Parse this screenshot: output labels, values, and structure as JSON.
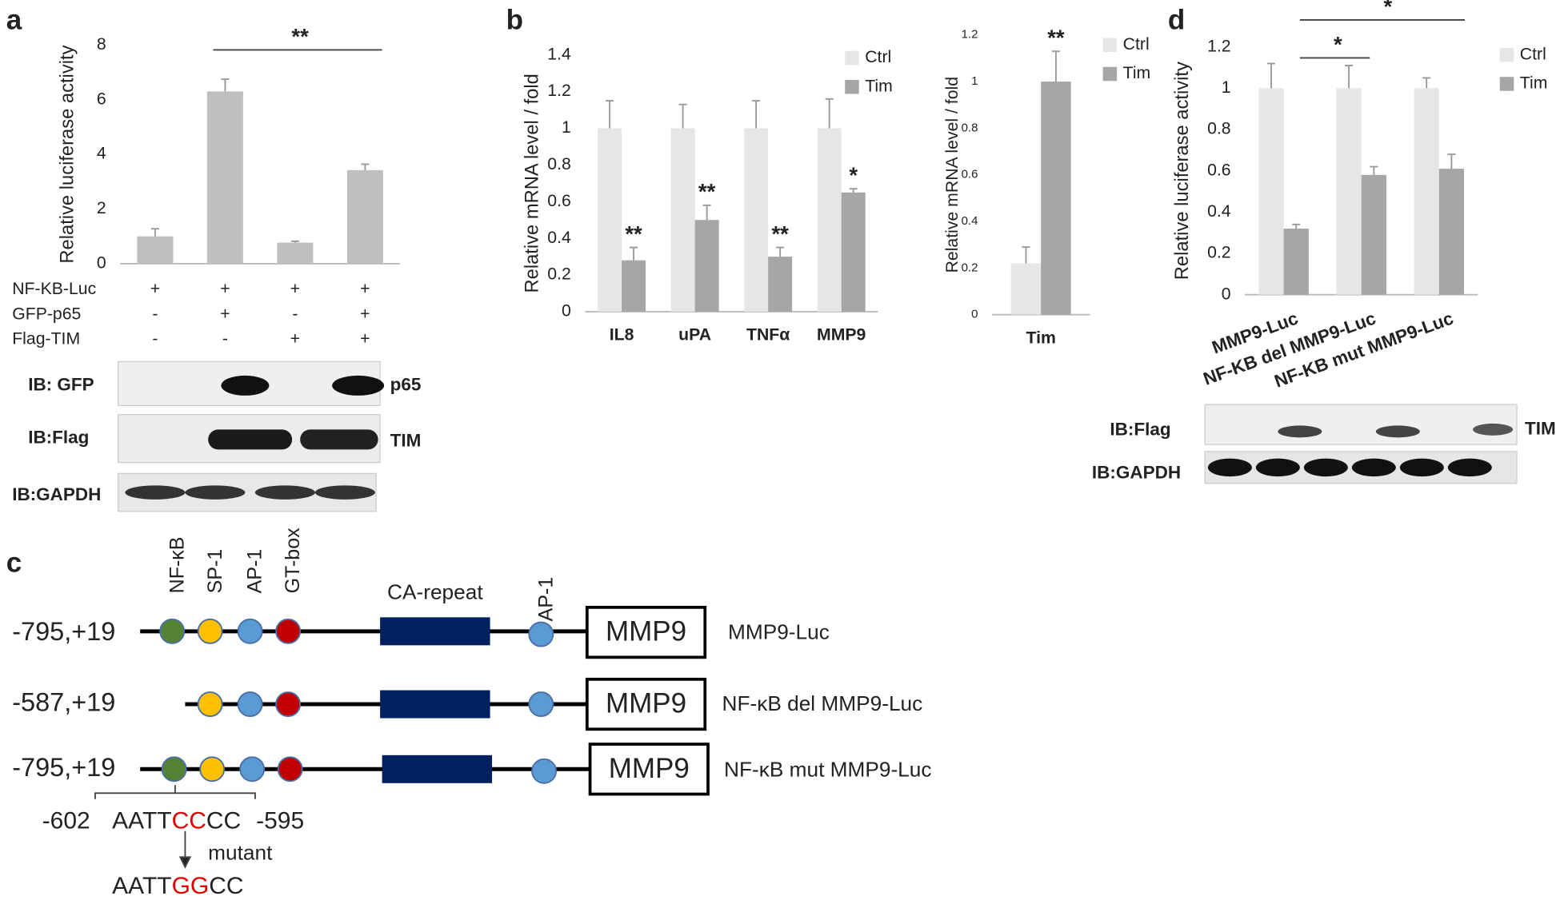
{
  "chart_data": [
    {
      "type": "bar",
      "ylabel": "Relative luciferase activity",
      "categories": [
        null,
        null,
        null,
        null
      ],
      "values": [
        1,
        6.3,
        0.77,
        3.42
      ],
      "errors": [
        0.28,
        0.45,
        0.05,
        0.22
      ],
      "color": "#bfbfbf",
      "ylim": [
        0,
        8
      ],
      "yticks": [
        0,
        2,
        4,
        6,
        8
      ],
      "annotations": [
        "**"
      ],
      "conditions": [
        {
          "name": "NF-KB-Luc",
          "marks": [
            "+",
            "+",
            "+",
            "+"
          ]
        },
        {
          "name": "GFP-p65",
          "marks": [
            "-",
            "+",
            "-",
            "+"
          ]
        },
        {
          "name": "Flag-TIM",
          "marks": [
            "-",
            "-",
            "+",
            "+"
          ]
        }
      ]
    },
    {
      "type": "bar",
      "ylabel": "Relative mRNA level / fold",
      "categories": [
        "IL8",
        "uPA",
        "TNFα",
        "MMP9"
      ],
      "series": [
        {
          "name": "Ctrl",
          "color": "#e6e6e6",
          "values": [
            1,
            1,
            1,
            1
          ],
          "errors": [
            0.15,
            0.13,
            0.15,
            0.16
          ]
        },
        {
          "name": "Tim",
          "color": "#a6a6a6",
          "values": [
            0.28,
            0.5,
            0.3,
            0.65
          ],
          "errors": [
            0.07,
            0.08,
            0.05,
            0.02
          ],
          "sig": [
            "**",
            "**",
            "**",
            "*"
          ]
        }
      ],
      "ylim": [
        0,
        1.4
      ],
      "yticks": [
        0,
        0.2,
        0.4,
        0.6,
        0.8,
        1,
        1.2,
        1.4
      ],
      "legend": "upper right"
    },
    {
      "type": "bar",
      "ylabel": "Relative mRNA level / fold",
      "categories": [
        "Tim"
      ],
      "series": [
        {
          "name": "Ctrl",
          "color": "#e6e6e6",
          "values": [
            0.22
          ],
          "errors": [
            0.07
          ]
        },
        {
          "name": "Tim",
          "color": "#a6a6a6",
          "values": [
            1
          ],
          "errors": [
            0.13
          ],
          "sig": [
            "**"
          ]
        }
      ],
      "ylim": [
        0,
        1.2
      ],
      "yticks": [
        0,
        0.2,
        0.4,
        0.6,
        0.8,
        1,
        1.2
      ],
      "legend": "upper right"
    },
    {
      "type": "bar",
      "ylabel": "Relative luciferase activity",
      "categories": [
        "MMP9-Luc",
        "NF-KB del MMP9-Luc",
        "NF-KB mut MMP9-Luc"
      ],
      "series": [
        {
          "name": "Ctrl",
          "color": "#e6e6e6",
          "values": [
            1,
            1,
            1
          ],
          "errors": [
            0.12,
            0.11,
            0.05
          ]
        },
        {
          "name": "Tim",
          "color": "#a6a6a6",
          "values": [
            0.32,
            0.58,
            0.61
          ],
          "errors": [
            0.02,
            0.04,
            0.07
          ]
        }
      ],
      "ylim": [
        0,
        1.2
      ],
      "yticks": [
        0,
        0.2,
        0.4,
        0.6,
        0.8,
        1,
        1.2
      ],
      "legend": "upper right",
      "annotations": [
        "*",
        "*"
      ]
    }
  ],
  "panels": [
    "a",
    "b",
    "c",
    "d"
  ],
  "blot_a": {
    "rows": [
      "IB: GFP",
      "IB:Flag",
      "IB:GAPDH"
    ],
    "right": [
      "p65",
      "TIM"
    ]
  },
  "blot_d": {
    "rows": [
      "IB:Flag",
      "IB:GAPDH"
    ],
    "right": [
      "TIM"
    ]
  },
  "diagram": {
    "sites": [
      "NF-κB",
      "SP-1",
      "AP-1",
      "GT-box"
    ],
    "ca_label": "CA-repeat",
    "ap1_label": "AP-1",
    "gene": "MMP9",
    "constructs": [
      {
        "range": "-795,+19",
        "name": "MMP9-Luc"
      },
      {
        "range": "-587,+19",
        "name": "NF-κB del MMP9-Luc"
      },
      {
        "range": "-795,+19",
        "name": "NF-κB mut MMP9-Luc"
      }
    ],
    "mutation": {
      "start": "-602",
      "end": "-595",
      "wild": [
        "AATT",
        "CC",
        "CC"
      ],
      "label": "mutant",
      "mutant": [
        "AATT",
        "GG",
        "CC"
      ]
    }
  }
}
